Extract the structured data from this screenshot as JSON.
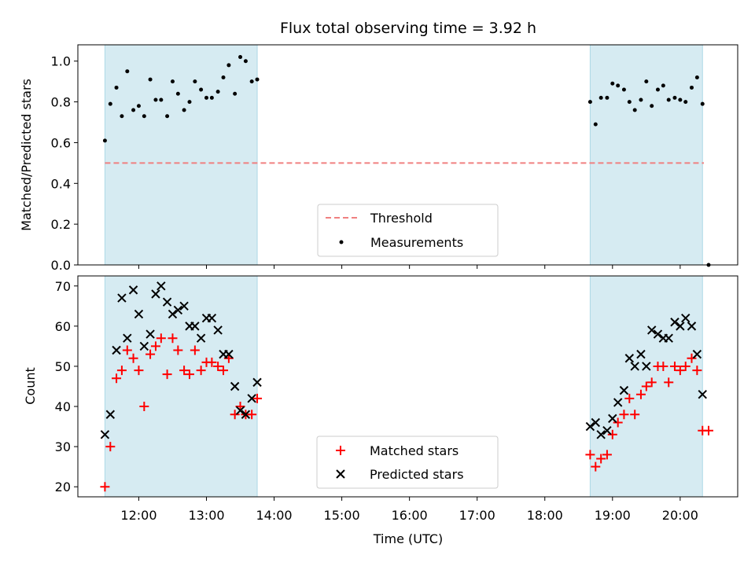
{
  "chart_data": {
    "title": "Flux total observing time = 3.92 h",
    "xlabel": "Time (UTC)",
    "xlim": [
      11.1,
      20.85
    ],
    "x_ticks": [
      {
        "value": 12,
        "label": "12:00"
      },
      {
        "value": 13,
        "label": "13:00"
      },
      {
        "value": 14,
        "label": "14:00"
      },
      {
        "value": 15,
        "label": "15:00"
      },
      {
        "value": 16,
        "label": "16:00"
      },
      {
        "value": 17,
        "label": "17:00"
      },
      {
        "value": 18,
        "label": "18:00"
      },
      {
        "value": 19,
        "label": "19:00"
      },
      {
        "value": 20,
        "label": "20:00"
      }
    ],
    "shaded_intervals": [
      [
        11.5,
        13.75
      ],
      [
        18.67,
        20.33
      ]
    ],
    "shade_color": "#add8e6",
    "panels": [
      {
        "type": "scatter",
        "ylabel": "Matched/Predicted stars",
        "ylim": [
          0.0,
          1.08
        ],
        "y_ticks": [
          0.0,
          0.2,
          0.4,
          0.6,
          0.8,
          1.0
        ],
        "y_tick_labels": [
          "0.0",
          "0.2",
          "0.4",
          "0.6",
          "0.8",
          "1.0"
        ],
        "threshold": {
          "name": "Threshold",
          "y": 0.5,
          "x_range": [
            11.5,
            20.35
          ],
          "color": "#f08080"
        },
        "series": [
          {
            "name": "Measurements",
            "color": "#000000",
            "marker": "dot",
            "points": [
              [
                11.5,
                0.61
              ],
              [
                11.58,
                0.79
              ],
              [
                11.67,
                0.87
              ],
              [
                11.75,
                0.73
              ],
              [
                11.83,
                0.95
              ],
              [
                11.92,
                0.76
              ],
              [
                12.0,
                0.78
              ],
              [
                12.08,
                0.73
              ],
              [
                12.17,
                0.91
              ],
              [
                12.25,
                0.81
              ],
              [
                12.33,
                0.81
              ],
              [
                12.42,
                0.73
              ],
              [
                12.5,
                0.9
              ],
              [
                12.58,
                0.84
              ],
              [
                12.67,
                0.76
              ],
              [
                12.75,
                0.8
              ],
              [
                12.83,
                0.9
              ],
              [
                12.92,
                0.86
              ],
              [
                13.0,
                0.82
              ],
              [
                13.08,
                0.82
              ],
              [
                13.17,
                0.85
              ],
              [
                13.25,
                0.92
              ],
              [
                13.33,
                0.98
              ],
              [
                13.42,
                0.84
              ],
              [
                13.5,
                1.02
              ],
              [
                13.58,
                1.0
              ],
              [
                13.67,
                0.9
              ],
              [
                13.75,
                0.91
              ],
              [
                18.67,
                0.8
              ],
              [
                18.75,
                0.69
              ],
              [
                18.83,
                0.82
              ],
              [
                18.92,
                0.82
              ],
              [
                19.0,
                0.89
              ],
              [
                19.08,
                0.88
              ],
              [
                19.17,
                0.86
              ],
              [
                19.25,
                0.8
              ],
              [
                19.33,
                0.76
              ],
              [
                19.42,
                0.81
              ],
              [
                19.5,
                0.9
              ],
              [
                19.58,
                0.78
              ],
              [
                19.67,
                0.86
              ],
              [
                19.75,
                0.88
              ],
              [
                19.83,
                0.81
              ],
              [
                19.92,
                0.82
              ],
              [
                20.0,
                0.81
              ],
              [
                20.08,
                0.8
              ],
              [
                20.17,
                0.87
              ],
              [
                20.25,
                0.92
              ],
              [
                20.33,
                0.79
              ],
              [
                20.42,
                0.0
              ]
            ]
          }
        ],
        "legend": {
          "position": "lower-center",
          "entries": [
            "Threshold",
            "Measurements"
          ]
        }
      },
      {
        "type": "scatter",
        "ylabel": "Count",
        "ylim": [
          17.5,
          72.5
        ],
        "y_ticks": [
          20,
          30,
          40,
          50,
          60,
          70
        ],
        "y_tick_labels": [
          "20",
          "30",
          "40",
          "50",
          "60",
          "70"
        ],
        "series": [
          {
            "name": "Matched stars",
            "color": "#ff0000",
            "marker": "plus",
            "points": [
              [
                11.5,
                20
              ],
              [
                11.58,
                30
              ],
              [
                11.67,
                47
              ],
              [
                11.75,
                49
              ],
              [
                11.83,
                54
              ],
              [
                11.92,
                52
              ],
              [
                12.0,
                49
              ],
              [
                12.08,
                40
              ],
              [
                12.17,
                53
              ],
              [
                12.25,
                55
              ],
              [
                12.33,
                57
              ],
              [
                12.42,
                48
              ],
              [
                12.5,
                57
              ],
              [
                12.58,
                54
              ],
              [
                12.67,
                49
              ],
              [
                12.75,
                48
              ],
              [
                12.83,
                54
              ],
              [
                12.92,
                49
              ],
              [
                13.0,
                51
              ],
              [
                13.08,
                51
              ],
              [
                13.17,
                50
              ],
              [
                13.25,
                49
              ],
              [
                13.33,
                52
              ],
              [
                13.42,
                38
              ],
              [
                13.5,
                40
              ],
              [
                13.58,
                38
              ],
              [
                13.67,
                38
              ],
              [
                13.75,
                42
              ],
              [
                18.67,
                28
              ],
              [
                18.75,
                25
              ],
              [
                18.83,
                27
              ],
              [
                18.92,
                28
              ],
              [
                19.0,
                33
              ],
              [
                19.08,
                36
              ],
              [
                19.17,
                38
              ],
              [
                19.25,
                42
              ],
              [
                19.33,
                38
              ],
              [
                19.42,
                43
              ],
              [
                19.5,
                45
              ],
              [
                19.58,
                46
              ],
              [
                19.67,
                50
              ],
              [
                19.75,
                50
              ],
              [
                19.83,
                46
              ],
              [
                19.92,
                50
              ],
              [
                20.0,
                49
              ],
              [
                20.08,
                50
              ],
              [
                20.17,
                52
              ],
              [
                20.25,
                49
              ],
              [
                20.33,
                34
              ],
              [
                20.42,
                34
              ]
            ]
          },
          {
            "name": "Predicted stars",
            "color": "#000000",
            "marker": "x",
            "points": [
              [
                11.5,
                33
              ],
              [
                11.58,
                38
              ],
              [
                11.67,
                54
              ],
              [
                11.75,
                67
              ],
              [
                11.83,
                57
              ],
              [
                11.92,
                69
              ],
              [
                12.0,
                63
              ],
              [
                12.08,
                55
              ],
              [
                12.17,
                58
              ],
              [
                12.25,
                68
              ],
              [
                12.33,
                70
              ],
              [
                12.42,
                66
              ],
              [
                12.5,
                63
              ],
              [
                12.58,
                64
              ],
              [
                12.67,
                65
              ],
              [
                12.75,
                60
              ],
              [
                12.83,
                60
              ],
              [
                12.92,
                57
              ],
              [
                13.0,
                62
              ],
              [
                13.08,
                62
              ],
              [
                13.17,
                59
              ],
              [
                13.25,
                53
              ],
              [
                13.33,
                53
              ],
              [
                13.42,
                45
              ],
              [
                13.5,
                39
              ],
              [
                13.58,
                38
              ],
              [
                13.67,
                42
              ],
              [
                13.75,
                46
              ],
              [
                18.67,
                35
              ],
              [
                18.75,
                36
              ],
              [
                18.83,
                33
              ],
              [
                18.92,
                34
              ],
              [
                19.0,
                37
              ],
              [
                19.08,
                41
              ],
              [
                19.17,
                44
              ],
              [
                19.25,
                52
              ],
              [
                19.33,
                50
              ],
              [
                19.42,
                53
              ],
              [
                19.5,
                50
              ],
              [
                19.58,
                59
              ],
              [
                19.67,
                58
              ],
              [
                19.75,
                57
              ],
              [
                19.83,
                57
              ],
              [
                19.92,
                61
              ],
              [
                20.0,
                60
              ],
              [
                20.08,
                62
              ],
              [
                20.17,
                60
              ],
              [
                20.25,
                53
              ],
              [
                20.33,
                43
              ]
            ]
          }
        ],
        "legend": {
          "position": "lower-center",
          "entries": [
            "Matched stars",
            "Predicted stars"
          ]
        }
      }
    ]
  }
}
